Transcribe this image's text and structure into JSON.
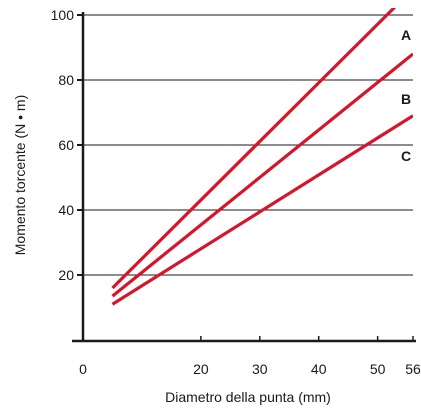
{
  "chart_data": {
    "type": "line",
    "xlabel": "Diametro della punta (mm)",
    "ylabel": "Momento torcente (N • m)",
    "xlim": [
      0,
      56
    ],
    "ylim": [
      0,
      108
    ],
    "x_ticks": [
      0,
      20,
      30,
      40,
      50,
      56
    ],
    "x_tick_labels": [
      "0",
      "20",
      "30",
      "40",
      "50",
      "56"
    ],
    "y_ticks": [
      20,
      40,
      60,
      80,
      100
    ],
    "y_tick_labels": [
      "20",
      "40",
      "60",
      "80",
      "100"
    ],
    "grid": "horizontal",
    "line_color": "#d7152a",
    "series": [
      {
        "name": "A",
        "x": [
          5,
          56
        ],
        "y": [
          16,
          108
        ]
      },
      {
        "name": "B",
        "x": [
          5,
          56
        ],
        "y": [
          13.5,
          88
        ]
      },
      {
        "name": "C",
        "x": [
          5,
          56
        ],
        "y": [
          11,
          69
        ]
      }
    ]
  }
}
